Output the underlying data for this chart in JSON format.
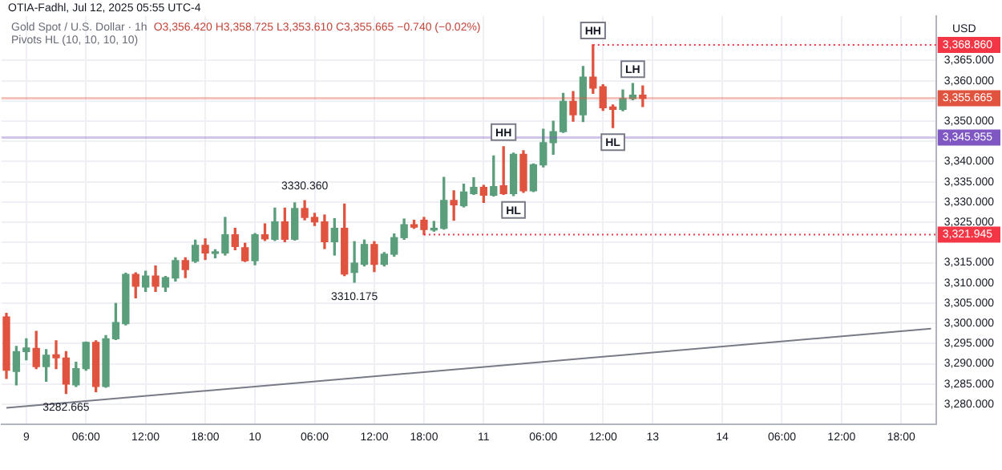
{
  "chart_data": {
    "type": "candlestick",
    "title": "Gold Spot / U.S. Dollar · 1h",
    "subtitle": "Pivots HL (10, 10, 10, 10)",
    "ylabel": "USD",
    "categories": [
      null,
      null,
      "9",
      null,
      null,
      null,
      null,
      null,
      "06:00",
      null,
      null,
      null,
      null,
      null,
      "12:00",
      null,
      null,
      null,
      null,
      null,
      "18:00",
      null,
      null,
      null,
      null,
      "10",
      null,
      null,
      null,
      null,
      null,
      "06:00",
      null,
      null,
      null,
      null,
      null,
      "12:00",
      null,
      null,
      null,
      null,
      "18:00",
      null,
      null,
      null,
      null,
      null,
      "11",
      null,
      null,
      null,
      null,
      null,
      "06:00",
      null,
      null,
      null,
      null,
      null,
      "12:00",
      null,
      null,
      null,
      null,
      "13",
      null,
      null,
      null,
      null,
      null,
      null,
      "14",
      null,
      null,
      null,
      null,
      null,
      "06:00",
      null,
      null,
      null,
      null,
      null,
      "12:00",
      null,
      null,
      null,
      null,
      null,
      "18:00",
      null,
      null,
      null
    ],
    "ohlc": [
      [
        3301.6,
        3302.5,
        3286.4,
        3288.4
      ],
      [
        3288.1,
        3294.3,
        3284.8,
        3293.0
      ],
      [
        3293.0,
        3296.2,
        3291.0,
        3293.9
      ],
      [
        3293.8,
        3298.0,
        3288.8,
        3289.3
      ],
      [
        3289.3,
        3293.5,
        3285.7,
        3292.1
      ],
      [
        3292.2,
        3295.7,
        3288.8,
        3291.5
      ],
      [
        3291.4,
        3293.0,
        3282.665,
        3285.0
      ],
      [
        3284.8,
        3290.4,
        3284.4,
        3288.8
      ],
      [
        3288.8,
        3295.4,
        3288.4,
        3295.3
      ],
      [
        3295.3,
        3295.7,
        3283.1,
        3284.4
      ],
      [
        3284.4,
        3297.0,
        3284.2,
        3296.2
      ],
      [
        3296.2,
        3304.9,
        3296.0,
        3300.2
      ],
      [
        3299.9,
        3312.4,
        3299.6,
        3312.1
      ],
      [
        3312.1,
        3312.5,
        3306.3,
        3309.2
      ],
      [
        3309.0,
        3312.9,
        3307.9,
        3311.7
      ],
      [
        3311.7,
        3314.2,
        3307.9,
        3309.2
      ],
      [
        3309.0,
        3311.6,
        3307.9,
        3311.3
      ],
      [
        3311.2,
        3316.2,
        3310.5,
        3315.5
      ],
      [
        3315.5,
        3316.2,
        3311.3,
        3313.3
      ],
      [
        3315.4,
        3320.6,
        3315.1,
        3319.3
      ],
      [
        3319.3,
        3320.9,
        3315.8,
        3317.4
      ],
      [
        3317.3,
        3318.2,
        3316.2,
        3317.6
      ],
      [
        3317.4,
        3326.2,
        3316.9,
        3321.9
      ],
      [
        3321.9,
        3323.5,
        3318.2,
        3319.0
      ],
      [
        3318.7,
        3319.8,
        3315.3,
        3315.5
      ],
      [
        3315.5,
        3322.2,
        3314.5,
        3321.9
      ],
      [
        3321.9,
        3324.6,
        3320.5,
        3320.9
      ],
      [
        3320.8,
        3328.5,
        3320.5,
        3325.1
      ],
      [
        3325.1,
        3328.5,
        3320.2,
        3320.8
      ],
      [
        3320.8,
        3329.8,
        3320.6,
        3328.4
      ],
      [
        3328.4,
        3330.36,
        3325.6,
        3326.2
      ],
      [
        3326.2,
        3327.2,
        3324.2,
        3325.1
      ],
      [
        3325.1,
        3326.8,
        3318.5,
        3320.2
      ],
      [
        3320.2,
        3325.9,
        3316.9,
        3323.5
      ],
      [
        3323.5,
        3329.5,
        3311.8,
        3312.2
      ],
      [
        3312.6,
        3320.2,
        3310.175,
        3314.9
      ],
      [
        3314.6,
        3320.6,
        3314.2,
        3319.5
      ],
      [
        3319.5,
        3320.2,
        3312.8,
        3314.6
      ],
      [
        3314.6,
        3317.5,
        3314.2,
        3317.1
      ],
      [
        3317.1,
        3322.1,
        3316.6,
        3321.2
      ],
      [
        3321.2,
        3325.8,
        3320.8,
        3324.4
      ],
      [
        3324.4,
        3325.5,
        3323.5,
        3323.8
      ],
      [
        3325.5,
        3326.2,
        3321.945,
        3323.2
      ],
      [
        3323.1,
        3325.2,
        3322.8,
        3323.5
      ],
      [
        3323.5,
        3336.1,
        3323.3,
        3330.4
      ],
      [
        3330.4,
        3332.8,
        3325.5,
        3329.3
      ],
      [
        3329.1,
        3334.4,
        3328.8,
        3332.5
      ],
      [
        3332.1,
        3336.0,
        3331.9,
        3333.6
      ],
      [
        3333.6,
        3334.1,
        3329.9,
        3331.7
      ],
      [
        3331.7,
        3341.4,
        3331.5,
        3333.8
      ],
      [
        3334.0,
        3343.7,
        3331.9,
        3332.1
      ],
      [
        3332.1,
        3342.1,
        3331.6,
        3341.8
      ],
      [
        3341.8,
        3342.7,
        3332.4,
        3332.8
      ],
      [
        3332.8,
        3339.4,
        3332.6,
        3339.2
      ],
      [
        3339.2,
        3348.0,
        3338.7,
        3344.7
      ],
      [
        3344.7,
        3350.0,
        3341.8,
        3347.4
      ],
      [
        3347.4,
        3356.9,
        3347.2,
        3354.9
      ],
      [
        3354.9,
        3357.3,
        3350.0,
        3351.6
      ],
      [
        3351.6,
        3363.5,
        3349.9,
        3360.9
      ],
      [
        3360.9,
        3368.86,
        3356.9,
        3358.2
      ],
      [
        3358.5,
        3359.0,
        3352.7,
        3353.3
      ],
      [
        3353.5,
        3354.0,
        3348.4,
        3352.9
      ],
      [
        3352.9,
        3357.7,
        3352.6,
        3355.6
      ],
      [
        3355.6,
        3359.3,
        3355.3,
        3356.42
      ],
      [
        3356.42,
        3358.725,
        3353.61,
        3355.665
      ],
      null,
      null,
      null,
      null,
      null,
      null,
      null,
      null,
      null,
      null,
      null,
      null,
      null,
      null,
      null,
      null,
      null,
      null,
      null,
      null,
      null,
      null,
      null,
      null,
      null,
      null,
      null,
      null,
      null
    ],
    "colors": [
      "#e0533f",
      "#5b9e7c",
      "#5b9e7c",
      "#e0533f",
      "#5b9e7c",
      "#e0533f",
      "#e0533f",
      "#5b9e7c",
      "#5b9e7c",
      "#e0533f",
      "#5b9e7c",
      "#5b9e7c",
      "#5b9e7c",
      "#e0533f",
      "#5b9e7c",
      "#e0533f",
      "#5b9e7c",
      "#5b9e7c",
      "#e0533f",
      "#5b9e7c",
      "#e0533f",
      "#5b9e7c",
      "#5b9e7c",
      "#e0533f",
      "#e0533f",
      "#5b9e7c",
      "#e0533f",
      "#5b9e7c",
      "#e0533f",
      "#5b9e7c",
      "#e0533f",
      "#e0533f",
      "#e0533f",
      "#5b9e7c",
      "#e0533f",
      "#5b9e7c",
      "#5b9e7c",
      "#e0533f",
      "#5b9e7c",
      "#5b9e7c",
      "#5b9e7c",
      "#e0533f",
      "#e0533f",
      "#5b9e7c",
      "#5b9e7c",
      "#e0533f",
      "#5b9e7c",
      "#5b9e7c",
      "#e0533f",
      "#5b9e7c",
      "#e0533f",
      "#5b9e7c",
      "#e0533f",
      "#5b9e7c",
      "#5b9e7c",
      "#5b9e7c",
      "#5b9e7c",
      "#e0533f",
      "#5b9e7c",
      "#e0533f",
      "#e0533f",
      "#e0533f",
      "#5b9e7c",
      "#5b9e7c",
      "#e0533f",
      null,
      null,
      null,
      null,
      null,
      null,
      null,
      null,
      null,
      null,
      null,
      null,
      null,
      null,
      null,
      null,
      null,
      null,
      null,
      null,
      null,
      null,
      null,
      null,
      null,
      null,
      null,
      null,
      null
    ],
    "series": [
      {
        "type": "line",
        "color": "#787b86",
        "values": [
          3279.1,
          null,
          null,
          null,
          null,
          null,
          null,
          null,
          null,
          null,
          null,
          null,
          null,
          null,
          null,
          null,
          null,
          null,
          null,
          null,
          null,
          null,
          null,
          null,
          null,
          null,
          null,
          null,
          null,
          null,
          null,
          null,
          null,
          null,
          null,
          null,
          null,
          null,
          null,
          null,
          null,
          null,
          null,
          null,
          null,
          null,
          null,
          null,
          null,
          null,
          null,
          null,
          null,
          null,
          null,
          null,
          null,
          null,
          null,
          null,
          null,
          null,
          null,
          null,
          null,
          null,
          null,
          null,
          null,
          null,
          null,
          null,
          null,
          null,
          null,
          null,
          null,
          null,
          null,
          null,
          null,
          null,
          null,
          null,
          null,
          null,
          null,
          null,
          null,
          null,
          null,
          null,
          null,
          3298.7
        ]
      }
    ],
    "ylim": [
      3275,
      3376
    ],
    "yticks": [
      {
        "value": 3280,
        "label": "3,280.000"
      },
      {
        "value": 3285,
        "label": "3,285.000"
      },
      {
        "value": 3290,
        "label": "3,290.000"
      },
      {
        "value": 3295,
        "label": "3,295.000"
      },
      {
        "value": 3300,
        "label": "3,300.000"
      },
      {
        "value": 3305,
        "label": "3,305.000"
      },
      {
        "value": 3310,
        "label": "3,310.000"
      },
      {
        "value": 3315,
        "label": "3,315.000"
      },
      {
        "value": 3320,
        "label": null
      },
      {
        "value": 3325,
        "label": "3,325.000"
      },
      {
        "value": 3330,
        "label": "3,330.000"
      },
      {
        "value": 3335,
        "label": "3,335.000"
      },
      {
        "value": 3340,
        "label": "3,340.000"
      },
      {
        "value": 3345,
        "label": null
      },
      {
        "value": 3350,
        "label": "3,350.000"
      },
      {
        "value": 3355,
        "label": null
      },
      {
        "value": 3360,
        "label": "3,360.000"
      },
      {
        "value": 3365,
        "label": "3,365.000"
      }
    ],
    "grid": true,
    "ref_lines": [
      {
        "axis": "y",
        "value": 3368.86,
        "label": "3,368.860",
        "color": "#f23645",
        "line_style": "dotted"
      },
      {
        "axis": "y",
        "value": 3355.665,
        "label": "3,355.665",
        "color": "#e0533f",
        "line_style": "solid"
      },
      {
        "axis": "y",
        "value": 3345.955,
        "label": "3,345.955",
        "color": "#7e57c2",
        "line_style": "solid"
      },
      {
        "axis": "y",
        "value": 3321.945,
        "label": "3,321.945",
        "color": "#f23645",
        "line_style": "dotted"
      }
    ],
    "annotations": [
      "OTIA-Fadhl, Jul 12, 2025 05:55 UTC-4",
      "O3,356.420 H3,358.725 L3,353.610 C3,355.665 −0.740 (−0.02%)",
      {
        "text": "3330.360",
        "y": 3330.36
      },
      {
        "text": "3310.175",
        "y": 3310.175
      },
      {
        "text": "3282.665",
        "y": 3282.665
      },
      {
        "text": "HH",
        "y": 3343.7
      },
      {
        "text": "HL",
        "y": 3331.6
      },
      {
        "text": "HH",
        "y": 3368.86
      },
      {
        "text": "HL",
        "y": 3348.4
      },
      {
        "text": "LH",
        "y": 3359.3
      }
    ]
  }
}
